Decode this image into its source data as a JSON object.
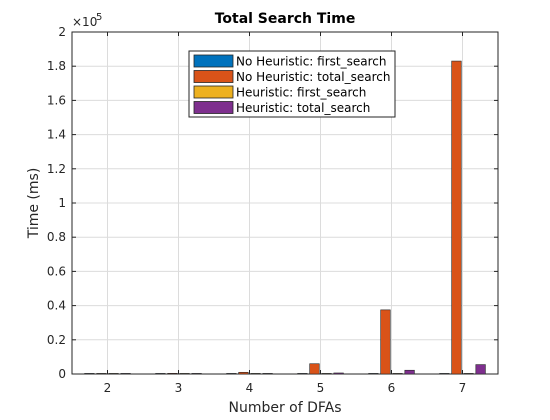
{
  "chart_data": {
    "type": "bar",
    "title": "Total Search Time",
    "xlabel": "Number of DFAs",
    "ylabel": "Time (ms)",
    "y_exponent_label": "×10",
    "y_exponent_power": "5",
    "categories": [
      "2",
      "3",
      "4",
      "5",
      "6",
      "7"
    ],
    "ylim": [
      0,
      200000
    ],
    "yticks": [
      0,
      20000,
      40000,
      60000,
      80000,
      100000,
      120000,
      140000,
      160000,
      180000,
      200000
    ],
    "ytick_labels": [
      "0",
      "0.2",
      "0.4",
      "0.6",
      "0.8",
      "1",
      "1.2",
      "1.4",
      "1.6",
      "1.8",
      "2"
    ],
    "grid": true,
    "legend_position": "top-center",
    "series": [
      {
        "name": "No Heuristic: first_search",
        "color": "#0072BD",
        "values": [
          50,
          60,
          80,
          120,
          200,
          300
        ]
      },
      {
        "name": "No Heuristic: total_search",
        "color": "#D95319",
        "values": [
          200,
          400,
          1000,
          6000,
          37500,
          183000
        ]
      },
      {
        "name": "Heuristic: first_search",
        "color": "#EDB120",
        "values": [
          50,
          60,
          80,
          120,
          200,
          300
        ]
      },
      {
        "name": "Heuristic: total_search",
        "color": "#7E2F8E",
        "values": [
          80,
          150,
          300,
          600,
          2200,
          5500
        ]
      }
    ]
  }
}
